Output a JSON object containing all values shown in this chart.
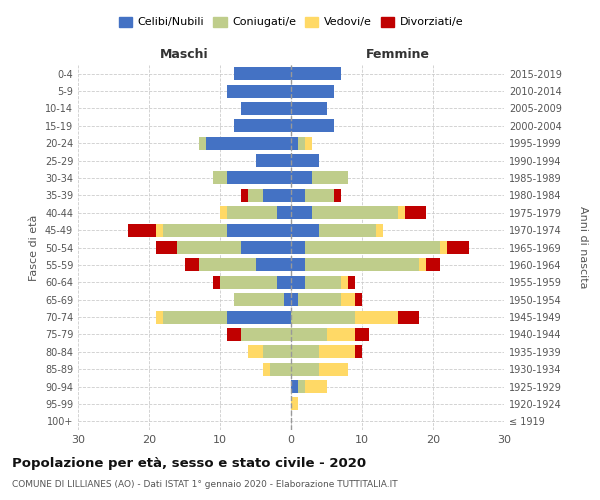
{
  "age_groups": [
    "100+",
    "95-99",
    "90-94",
    "85-89",
    "80-84",
    "75-79",
    "70-74",
    "65-69",
    "60-64",
    "55-59",
    "50-54",
    "45-49",
    "40-44",
    "35-39",
    "30-34",
    "25-29",
    "20-24",
    "15-19",
    "10-14",
    "5-9",
    "0-4"
  ],
  "birth_years": [
    "≤ 1919",
    "1920-1924",
    "1925-1929",
    "1930-1934",
    "1935-1939",
    "1940-1944",
    "1945-1949",
    "1950-1954",
    "1955-1959",
    "1960-1964",
    "1965-1969",
    "1970-1974",
    "1975-1979",
    "1980-1984",
    "1985-1989",
    "1990-1994",
    "1995-1999",
    "2000-2004",
    "2005-2009",
    "2010-2014",
    "2015-2019"
  ],
  "maschi": {
    "celibi": [
      0,
      0,
      0,
      0,
      0,
      0,
      9,
      1,
      2,
      5,
      7,
      9,
      2,
      4,
      9,
      5,
      12,
      8,
      7,
      9,
      8
    ],
    "coniugati": [
      0,
      0,
      0,
      3,
      4,
      7,
      9,
      7,
      8,
      8,
      9,
      9,
      7,
      2,
      2,
      0,
      1,
      0,
      0,
      0,
      0
    ],
    "vedovi": [
      0,
      0,
      0,
      1,
      2,
      0,
      1,
      0,
      0,
      0,
      0,
      1,
      1,
      0,
      0,
      0,
      0,
      0,
      0,
      0,
      0
    ],
    "divorziati": [
      0,
      0,
      0,
      0,
      0,
      2,
      0,
      0,
      1,
      2,
      3,
      4,
      0,
      1,
      0,
      0,
      0,
      0,
      0,
      0,
      0
    ]
  },
  "femmine": {
    "nubili": [
      0,
      0,
      1,
      0,
      0,
      0,
      0,
      1,
      2,
      2,
      2,
      4,
      3,
      2,
      3,
      4,
      1,
      6,
      5,
      6,
      7
    ],
    "coniugate": [
      0,
      0,
      1,
      4,
      4,
      5,
      9,
      6,
      5,
      16,
      19,
      8,
      12,
      4,
      5,
      0,
      1,
      0,
      0,
      0,
      0
    ],
    "vedove": [
      0,
      1,
      3,
      4,
      5,
      4,
      6,
      2,
      1,
      1,
      1,
      1,
      1,
      0,
      0,
      0,
      1,
      0,
      0,
      0,
      0
    ],
    "divorziate": [
      0,
      0,
      0,
      0,
      1,
      2,
      3,
      1,
      1,
      2,
      3,
      0,
      3,
      1,
      0,
      0,
      0,
      0,
      0,
      0,
      0
    ]
  },
  "colors": {
    "celibi": "#4472C4",
    "coniugati": "#BFCD8B",
    "vedovi": "#FFD966",
    "divorziati": "#C00000"
  },
  "xlim": 30,
  "title": "Popolazione per età, sesso e stato civile - 2020",
  "subtitle": "COMUNE DI LILLIANES (AO) - Dati ISTAT 1° gennaio 2020 - Elaborazione TUTTITALIA.IT",
  "ylabel_left": "Fasce di età",
  "ylabel_right": "Anni di nascita",
  "xlabel_maschi": "Maschi",
  "xlabel_femmine": "Femmine"
}
